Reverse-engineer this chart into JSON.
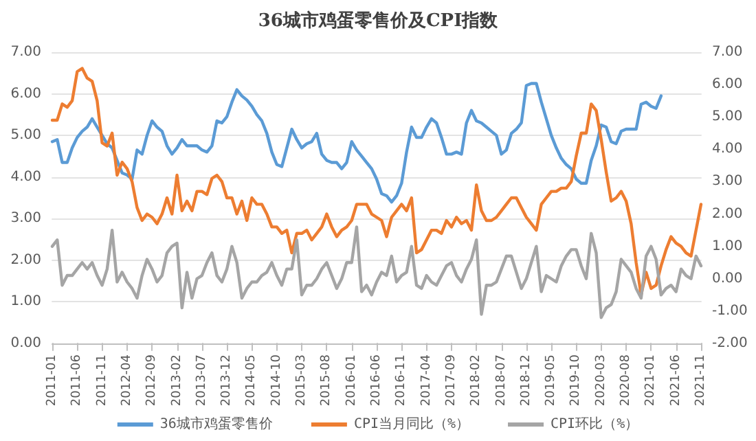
{
  "chart_data": {
    "type": "line",
    "title": "36城市鸡蛋零售价及CPI指数",
    "categories": [
      "2011-01",
      null,
      null,
      null,
      null,
      "2011-06",
      null,
      null,
      null,
      null,
      "2011-11",
      null,
      null,
      null,
      null,
      "2012-04",
      null,
      null,
      null,
      null,
      "2012-09",
      null,
      null,
      null,
      null,
      "2013-02",
      null,
      null,
      null,
      null,
      "2013-07",
      null,
      null,
      null,
      null,
      "2013-12",
      null,
      null,
      null,
      null,
      "2014-05",
      null,
      null,
      null,
      null,
      "2014-10",
      null,
      null,
      null,
      null,
      "2015-03",
      null,
      null,
      null,
      null,
      "2015-08",
      null,
      null,
      null,
      null,
      "2016-01",
      null,
      null,
      null,
      null,
      "2016-06",
      null,
      null,
      null,
      null,
      "2016-11",
      null,
      null,
      null,
      null,
      "2017-04",
      null,
      null,
      null,
      null,
      "2017-09",
      null,
      null,
      null,
      null,
      "2018-02",
      null,
      null,
      null,
      null,
      "2018-07",
      null,
      null,
      null,
      null,
      "2018-12",
      null,
      null,
      null,
      null,
      "2019-05",
      null,
      null,
      null,
      null,
      "2019-10",
      null,
      null,
      null,
      null,
      "2020-03",
      null,
      null,
      null,
      null,
      "2020-08",
      null,
      null,
      null,
      null,
      "2021-01",
      null,
      null,
      null,
      null,
      "2021-06",
      null,
      null,
      null,
      null,
      "2021-11"
    ],
    "series": [
      {
        "name": "36城市鸡蛋零售价",
        "color": "#5b9bd5",
        "values": [
          4.85,
          4.9,
          4.35,
          4.35,
          4.7,
          4.95,
          5.1,
          5.2,
          5.4,
          5.2,
          5.0,
          4.8,
          4.7,
          4.4,
          4.1,
          4.05,
          3.95,
          4.65,
          4.55,
          5.0,
          5.35,
          5.2,
          5.1,
          4.75,
          4.55,
          4.7,
          4.9,
          4.75,
          4.75,
          4.75,
          4.65,
          4.6,
          4.75,
          5.35,
          5.3,
          5.45,
          5.8,
          6.1,
          5.95,
          5.85,
          5.7,
          5.5,
          5.35,
          5.05,
          4.6,
          4.3,
          4.25,
          4.7,
          5.15,
          4.9,
          4.7,
          4.8,
          4.85,
          5.05,
          4.55,
          4.4,
          4.35,
          4.35,
          4.2,
          4.35,
          4.85,
          4.65,
          4.5,
          4.35,
          4.2,
          3.95,
          3.6,
          3.55,
          3.4,
          3.55,
          3.85,
          4.6,
          5.2,
          4.95,
          4.95,
          5.2,
          5.4,
          5.3,
          4.95,
          4.55,
          4.55,
          4.6,
          4.55,
          5.3,
          5.6,
          5.35,
          5.3,
          5.2,
          5.1,
          5.0,
          4.55,
          4.65,
          5.05,
          5.15,
          5.3,
          6.2,
          6.25,
          6.25,
          5.8,
          5.4,
          5.0,
          4.7,
          4.45,
          4.3,
          4.2,
          3.95,
          3.85,
          3.85,
          4.4,
          4.75,
          5.25,
          5.2,
          4.85,
          4.8,
          5.1,
          5.15,
          5.15,
          5.15,
          5.75,
          5.8,
          5.7,
          5.65,
          5.95,
          null,
          null,
          null,
          null,
          null,
          null,
          null,
          null
        ]
      },
      {
        "name": "CPI当月同比（%）",
        "color": "#ed7d31",
        "axis": "y2",
        "values": [
          4.9,
          4.9,
          5.4,
          5.3,
          5.5,
          6.4,
          6.5,
          6.2,
          6.1,
          5.5,
          4.2,
          4.1,
          4.5,
          3.2,
          3.6,
          3.4,
          3.0,
          2.2,
          1.8,
          2.0,
          1.9,
          1.7,
          2.0,
          2.5,
          2.0,
          3.2,
          2.1,
          2.4,
          2.1,
          2.7,
          2.7,
          2.6,
          3.1,
          3.2,
          3.0,
          2.5,
          2.5,
          2.0,
          2.4,
          1.8,
          2.5,
          2.3,
          2.3,
          2.0,
          1.6,
          1.6,
          1.4,
          1.5,
          0.8,
          1.4,
          1.4,
          1.5,
          1.2,
          1.4,
          1.6,
          2.0,
          1.6,
          1.3,
          1.5,
          1.6,
          1.8,
          2.3,
          2.3,
          2.3,
          2.0,
          1.9,
          1.8,
          1.3,
          1.9,
          2.1,
          2.3,
          2.1,
          2.5,
          0.8,
          0.9,
          1.2,
          1.5,
          1.5,
          1.4,
          1.8,
          1.6,
          1.9,
          1.7,
          1.8,
          1.5,
          2.9,
          2.1,
          1.8,
          1.8,
          1.9,
          2.1,
          2.3,
          2.5,
          2.5,
          2.2,
          1.9,
          1.7,
          1.5,
          2.3,
          2.5,
          2.7,
          2.7,
          2.8,
          2.8,
          3.0,
          3.8,
          4.5,
          4.5,
          5.4,
          5.2,
          4.3,
          3.3,
          2.4,
          2.5,
          2.7,
          2.4,
          1.7,
          0.5,
          -0.5,
          0.2,
          -0.3,
          -0.2,
          0.4,
          0.9,
          1.3,
          1.1,
          1.0,
          0.8,
          0.7,
          1.5,
          2.3
        ]
      },
      {
        "name": "CPI环比（%）",
        "color": "#a5a5a5",
        "axis": "y2",
        "values": [
          1.0,
          1.2,
          -0.2,
          0.1,
          0.1,
          0.3,
          0.5,
          0.3,
          0.5,
          0.1,
          -0.2,
          0.3,
          1.5,
          -0.1,
          0.2,
          -0.1,
          -0.3,
          -0.6,
          0.1,
          0.6,
          0.3,
          -0.1,
          0.1,
          0.8,
          1.0,
          1.1,
          -0.9,
          0.2,
          -0.6,
          0.0,
          0.1,
          0.5,
          0.8,
          0.1,
          -0.1,
          0.3,
          1.0,
          0.5,
          -0.6,
          -0.3,
          -0.1,
          -0.1,
          0.1,
          0.2,
          0.5,
          0.1,
          -0.2,
          0.3,
          0.3,
          1.2,
          -0.5,
          -0.2,
          -0.2,
          0.0,
          0.3,
          0.5,
          0.1,
          -0.3,
          0.0,
          0.5,
          0.5,
          1.6,
          -0.4,
          -0.2,
          -0.5,
          -0.1,
          0.2,
          0.1,
          0.7,
          -0.1,
          0.1,
          0.2,
          1.0,
          -0.2,
          -0.3,
          0.1,
          -0.1,
          -0.2,
          0.1,
          0.4,
          0.5,
          0.1,
          -0.1,
          0.3,
          0.6,
          1.2,
          -1.1,
          -0.2,
          -0.2,
          -0.1,
          0.3,
          0.7,
          0.7,
          0.2,
          -0.3,
          0.0,
          0.5,
          1.0,
          -0.4,
          0.1,
          0.0,
          -0.1,
          0.4,
          0.7,
          0.9,
          0.9,
          0.4,
          0.0,
          1.4,
          0.8,
          -1.2,
          -0.9,
          -0.8,
          -0.4,
          0.6,
          0.4,
          0.2,
          -0.3,
          -0.6,
          0.7,
          1.0,
          0.6,
          -0.5,
          -0.3,
          -0.2,
          -0.4,
          0.3,
          0.1,
          0.0,
          0.7,
          0.4
        ]
      }
    ],
    "ylim": [
      0,
      7
    ],
    "yticks": [
      {
        "value": 0,
        "label": "0.00"
      },
      {
        "value": 1,
        "label": "1.00"
      },
      {
        "value": 2,
        "label": "2.00"
      },
      {
        "value": 3,
        "label": "3.00"
      },
      {
        "value": 4,
        "label": "4.00"
      },
      {
        "value": 5,
        "label": "5.00"
      },
      {
        "value": 6,
        "label": "6.00"
      },
      {
        "value": 7,
        "label": "7.00"
      }
    ],
    "y2lim": [
      -2,
      7
    ],
    "y2ticks": [
      {
        "value": -2,
        "label": "-2.00"
      },
      {
        "value": -1,
        "label": "-1.00"
      },
      {
        "value": 0,
        "label": "0.00"
      },
      {
        "value": 1,
        "label": "1.00"
      },
      {
        "value": 2,
        "label": "2.00"
      },
      {
        "value": 3,
        "label": "3.00"
      },
      {
        "value": 4,
        "label": "4.00"
      },
      {
        "value": 5,
        "label": "5.00"
      },
      {
        "value": 6,
        "label": "6.00"
      },
      {
        "value": 7,
        "label": "7.00"
      }
    ],
    "grid": "y",
    "legend": "bottom",
    "marker": "none",
    "line_style": "solid"
  }
}
